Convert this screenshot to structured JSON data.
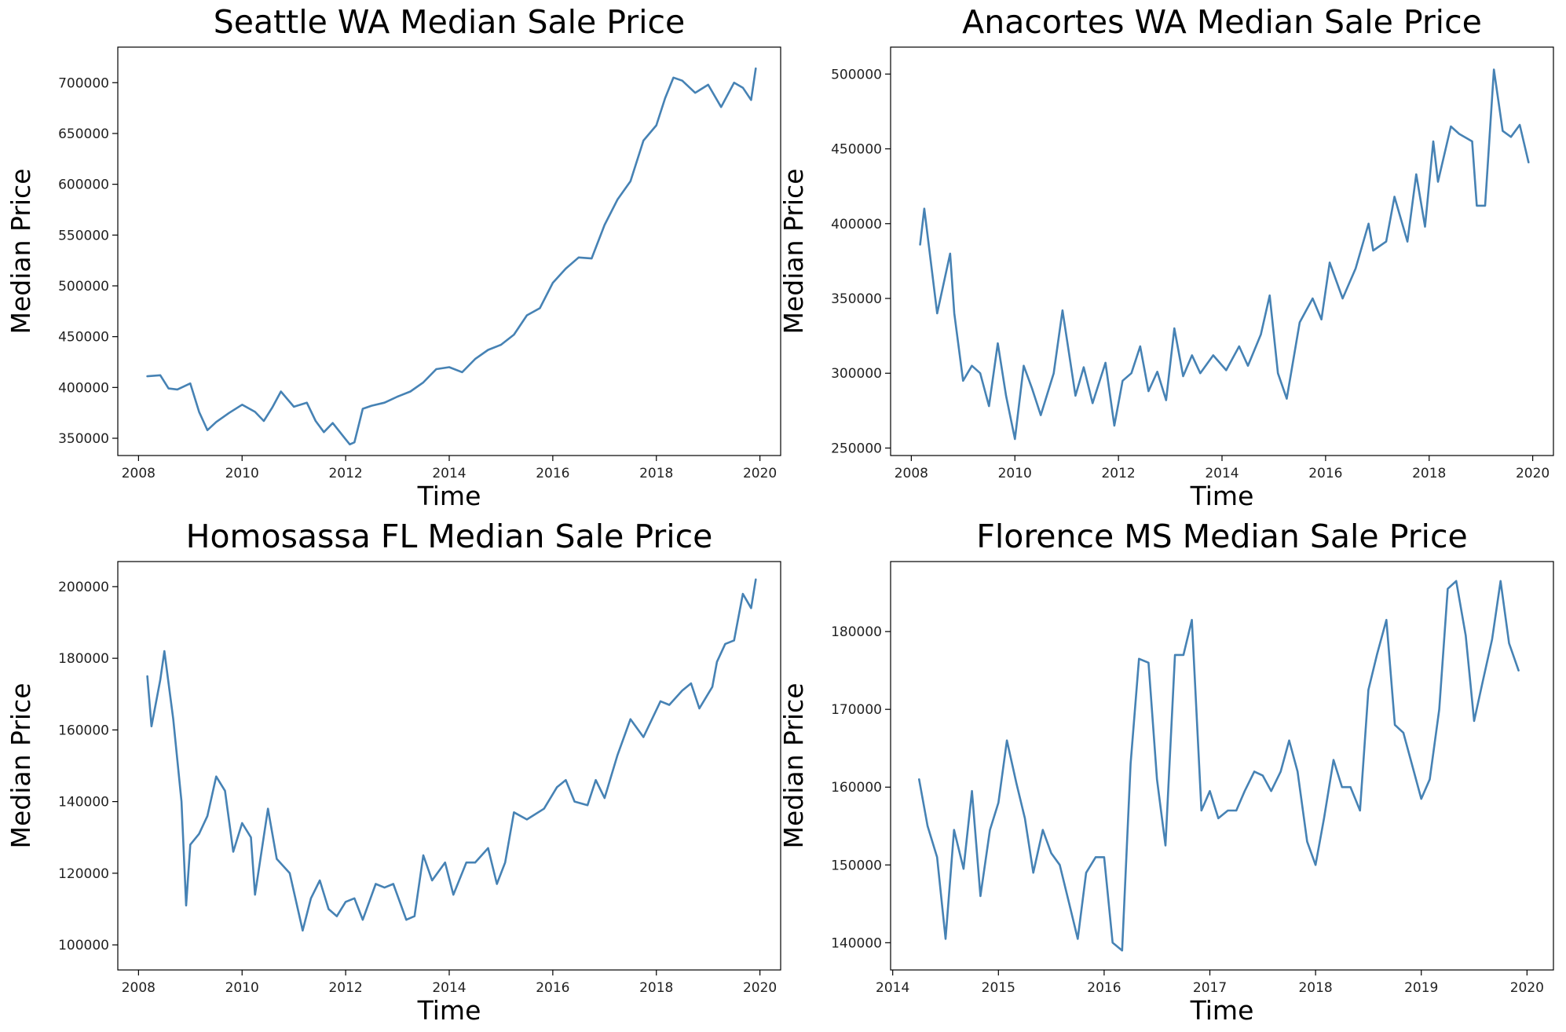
{
  "colors": {
    "line": "#4682b4",
    "axis": "#000000",
    "background": "#ffffff"
  },
  "chart_data": [
    {
      "type": "line",
      "title": "Seattle WA Median Sale Price",
      "xlabel": "Time",
      "ylabel": "Median Price",
      "xlim": [
        2007.6,
        2020.4
      ],
      "ylim": [
        333000,
        735000
      ],
      "xticks": [
        2008,
        2010,
        2012,
        2014,
        2016,
        2018,
        2020
      ],
      "xtick_labels": [
        "2008",
        "2010",
        "2012",
        "2014",
        "2016",
        "2018",
        "2020"
      ],
      "yticks": [
        350000,
        400000,
        450000,
        500000,
        550000,
        600000,
        650000,
        700000
      ],
      "ytick_labels": [
        "350000",
        "400000",
        "450000",
        "500000",
        "550000",
        "600000",
        "650000",
        "700000"
      ],
      "grid": false,
      "series": [
        {
          "x": [
            2008.17,
            2008.42,
            2008.58,
            2008.75,
            2009.0,
            2009.17,
            2009.33,
            2009.5,
            2009.75,
            2010.0,
            2010.25,
            2010.42,
            2010.58,
            2010.75,
            2011.0,
            2011.25,
            2011.42,
            2011.58,
            2011.75,
            2012.0,
            2012.08,
            2012.17,
            2012.33,
            2012.5,
            2012.75,
            2013.0,
            2013.25,
            2013.5,
            2013.75,
            2014.0,
            2014.25,
            2014.5,
            2014.75,
            2015.0,
            2015.25,
            2015.5,
            2015.75,
            2016.0,
            2016.25,
            2016.5,
            2016.75,
            2017.0,
            2017.25,
            2017.5,
            2017.75,
            2018.0,
            2018.17,
            2018.33,
            2018.5,
            2018.75,
            2019.0,
            2019.25,
            2019.5,
            2019.67,
            2019.83,
            2019.92
          ],
          "y": [
            411000,
            412000,
            399000,
            398000,
            404000,
            376000,
            358000,
            366000,
            375000,
            383000,
            376000,
            367000,
            380000,
            396000,
            381000,
            385000,
            367000,
            356000,
            365000,
            349000,
            344000,
            346000,
            379000,
            382000,
            385000,
            391000,
            396000,
            405000,
            418000,
            420000,
            415000,
            428000,
            437000,
            442000,
            452000,
            471000,
            478000,
            503000,
            517000,
            528000,
            527000,
            560000,
            585000,
            603000,
            643000,
            658000,
            685000,
            705000,
            702000,
            690000,
            698000,
            676000,
            700000,
            695000,
            683000,
            714000
          ]
        }
      ]
    },
    {
      "type": "line",
      "title": "Anacortes WA Median Sale Price",
      "xlabel": "Time",
      "ylabel": "Median Price",
      "xlim": [
        2007.6,
        2020.4
      ],
      "ylim": [
        245000,
        518000
      ],
      "xticks": [
        2008,
        2010,
        2012,
        2014,
        2016,
        2018,
        2020
      ],
      "xtick_labels": [
        "2008",
        "2010",
        "2012",
        "2014",
        "2016",
        "2018",
        "2020"
      ],
      "yticks": [
        250000,
        300000,
        350000,
        400000,
        450000,
        500000
      ],
      "ytick_labels": [
        "250000",
        "300000",
        "350000",
        "400000",
        "450000",
        "500000"
      ],
      "grid": false,
      "series": [
        {
          "x": [
            2008.17,
            2008.25,
            2008.5,
            2008.75,
            2008.83,
            2009.0,
            2009.17,
            2009.33,
            2009.5,
            2009.67,
            2009.83,
            2010.0,
            2010.17,
            2010.33,
            2010.5,
            2010.75,
            2010.92,
            2011.17,
            2011.33,
            2011.5,
            2011.75,
            2011.92,
            2012.08,
            2012.25,
            2012.42,
            2012.58,
            2012.75,
            2012.92,
            2013.08,
            2013.25,
            2013.42,
            2013.58,
            2013.83,
            2014.08,
            2014.33,
            2014.5,
            2014.75,
            2014.92,
            2015.08,
            2015.25,
            2015.5,
            2015.75,
            2015.92,
            2016.08,
            2016.33,
            2016.58,
            2016.83,
            2016.92,
            2017.17,
            2017.33,
            2017.58,
            2017.75,
            2017.92,
            2018.08,
            2018.17,
            2018.42,
            2018.58,
            2018.83,
            2018.92,
            2019.08,
            2019.25,
            2019.42,
            2019.58,
            2019.75,
            2019.92
          ],
          "y": [
            386000,
            410000,
            340000,
            380000,
            340000,
            295000,
            305000,
            300000,
            278000,
            320000,
            285000,
            256000,
            305000,
            290000,
            272000,
            300000,
            342000,
            285000,
            304000,
            280000,
            307000,
            265000,
            295000,
            300000,
            318000,
            288000,
            301000,
            282000,
            330000,
            298000,
            312000,
            300000,
            312000,
            302000,
            318000,
            305000,
            326000,
            352000,
            300000,
            283000,
            334000,
            350000,
            336000,
            374000,
            350000,
            370000,
            400000,
            382000,
            388000,
            418000,
            388000,
            433000,
            398000,
            455000,
            428000,
            465000,
            460000,
            455000,
            412000,
            412000,
            503000,
            462000,
            458000,
            466000,
            441000
          ]
        }
      ]
    },
    {
      "type": "line",
      "title": "Homosassa FL Median Sale Price",
      "xlabel": "Time",
      "ylabel": "Median Price",
      "xlim": [
        2007.6,
        2020.4
      ],
      "ylim": [
        93000,
        207000
      ],
      "xticks": [
        2008,
        2010,
        2012,
        2014,
        2016,
        2018,
        2020
      ],
      "xtick_labels": [
        "2008",
        "2010",
        "2012",
        "2014",
        "2016",
        "2018",
        "2020"
      ],
      "yticks": [
        100000,
        120000,
        140000,
        160000,
        180000,
        200000
      ],
      "ytick_labels": [
        "100000",
        "120000",
        "140000",
        "160000",
        "180000",
        "200000"
      ],
      "grid": false,
      "series": [
        {
          "x": [
            2008.17,
            2008.25,
            2008.42,
            2008.5,
            2008.67,
            2008.83,
            2008.92,
            2009.0,
            2009.17,
            2009.33,
            2009.5,
            2009.67,
            2009.83,
            2010.0,
            2010.17,
            2010.25,
            2010.5,
            2010.67,
            2010.92,
            2011.17,
            2011.33,
            2011.5,
            2011.67,
            2011.83,
            2012.0,
            2012.17,
            2012.33,
            2012.58,
            2012.75,
            2012.92,
            2013.17,
            2013.33,
            2013.5,
            2013.67,
            2013.92,
            2014.08,
            2014.33,
            2014.5,
            2014.75,
            2014.92,
            2015.08,
            2015.25,
            2015.5,
            2015.83,
            2016.08,
            2016.25,
            2016.42,
            2016.67,
            2016.83,
            2017.0,
            2017.25,
            2017.5,
            2017.75,
            2018.08,
            2018.25,
            2018.5,
            2018.67,
            2018.83,
            2019.08,
            2019.17,
            2019.33,
            2019.5,
            2019.67,
            2019.83,
            2019.92
          ],
          "y": [
            175000,
            161000,
            174000,
            182000,
            163000,
            140000,
            111000,
            128000,
            131000,
            136000,
            147000,
            143000,
            126000,
            134000,
            130000,
            114000,
            138000,
            124000,
            120000,
            104000,
            113000,
            118000,
            110000,
            108000,
            112000,
            113000,
            107000,
            117000,
            116000,
            117000,
            107000,
            108000,
            125000,
            118000,
            123000,
            114000,
            123000,
            123000,
            127000,
            117000,
            123000,
            137000,
            135000,
            138000,
            144000,
            146000,
            140000,
            139000,
            146000,
            141000,
            153000,
            163000,
            158000,
            168000,
            167000,
            171000,
            173000,
            166000,
            172000,
            179000,
            184000,
            185000,
            198000,
            194000,
            202000
          ]
        }
      ]
    },
    {
      "type": "line",
      "title": "Florence MS Median Sale Price",
      "xlabel": "Time",
      "ylabel": "Median Price",
      "xlim": [
        2013.98,
        2020.25
      ],
      "ylim": [
        136500,
        189000
      ],
      "xticks": [
        2014,
        2015,
        2016,
        2017,
        2018,
        2019,
        2020
      ],
      "xtick_labels": [
        "2014",
        "2015",
        "2016",
        "2017",
        "2018",
        "2019",
        "2020"
      ],
      "yticks": [
        140000,
        150000,
        160000,
        170000,
        180000
      ],
      "ytick_labels": [
        "140000",
        "150000",
        "160000",
        "170000",
        "180000"
      ],
      "grid": false,
      "series": [
        {
          "x": [
            2014.25,
            2014.33,
            2014.42,
            2014.5,
            2014.58,
            2014.67,
            2014.75,
            2014.83,
            2014.92,
            2015.0,
            2015.08,
            2015.17,
            2015.25,
            2015.33,
            2015.42,
            2015.5,
            2015.58,
            2015.67,
            2015.75,
            2015.83,
            2015.92,
            2016.0,
            2016.08,
            2016.17,
            2016.25,
            2016.33,
            2016.42,
            2016.5,
            2016.58,
            2016.67,
            2016.75,
            2016.83,
            2016.92,
            2017.0,
            2017.08,
            2017.17,
            2017.25,
            2017.33,
            2017.42,
            2017.5,
            2017.58,
            2017.67,
            2017.75,
            2017.83,
            2017.92,
            2018.0,
            2018.08,
            2018.17,
            2018.25,
            2018.33,
            2018.42,
            2018.5,
            2018.58,
            2018.67,
            2018.75,
            2018.83,
            2018.92,
            2019.0,
            2019.08,
            2019.17,
            2019.25,
            2019.33,
            2019.42,
            2019.5,
            2019.58,
            2019.67,
            2019.75,
            2019.83,
            2019.92
          ],
          "y": [
            161000,
            155000,
            151000,
            140500,
            154500,
            149500,
            159500,
            146000,
            154500,
            158000,
            166000,
            160500,
            156000,
            149000,
            154500,
            151500,
            150000,
            145000,
            140500,
            149000,
            151000,
            151000,
            140000,
            139000,
            163000,
            176500,
            176000,
            161000,
            152500,
            177000,
            177000,
            181500,
            157000,
            159500,
            156000,
            157000,
            157000,
            159500,
            162000,
            161500,
            159500,
            162000,
            166000,
            162000,
            153000,
            150000,
            156000,
            163500,
            160000,
            160000,
            157000,
            172500,
            177000,
            181500,
            168000,
            167000,
            162500,
            158500,
            161000,
            170000,
            185500,
            186500,
            179500,
            168500,
            173500,
            179000,
            186500,
            178500,
            175000
          ]
        }
      ]
    }
  ]
}
